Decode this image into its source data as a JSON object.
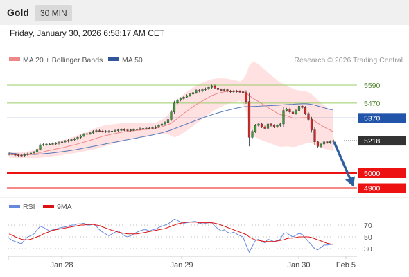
{
  "header": {
    "instrument": "Gold",
    "timeframe": "30 MIN",
    "datetime": "Friday, January 30, 2026 6:58:17 AM CET"
  },
  "legend": {
    "ma20": "MA 20 + Bollinger Bands",
    "ma50": "MA 50",
    "credit": "Research © 2026 Trading Central",
    "rsi": "RSI",
    "rsi_ma": "9MA"
  },
  "colors": {
    "candle_up": "#33a033",
    "candle_down": "#dd2222",
    "bollinger_fill": "#ffdede",
    "ma20": "#ee8888",
    "ma50": "#5577bb",
    "level_green": "#99cc66",
    "level_blue": "#2255aa",
    "level_red": "#ee1111",
    "current_tag": "#333333",
    "arrow": "#2f5f9f",
    "rsi": "#6688dd",
    "rsi_ma": "#dd1111"
  },
  "chart_data": [
    {
      "type": "candlestick",
      "y_range": [
        4860,
        5700
      ],
      "x_labels": [
        "Jan 28",
        "Jan 29",
        "Jan 30",
        "Feb 5"
      ],
      "levels": [
        {
          "value": 5590,
          "label": "5590",
          "kind": "green"
        },
        {
          "value": 5470,
          "label": "5470",
          "kind": "green"
        },
        {
          "value": 5370,
          "label": "5370",
          "kind": "blue"
        },
        {
          "value": 5218,
          "label": "5218",
          "kind": "current"
        },
        {
          "value": 5000,
          "label": "5000",
          "kind": "red"
        },
        {
          "value": 4900,
          "label": "4900",
          "kind": "red"
        }
      ],
      "closes": [
        5130,
        5125,
        5122,
        5120,
        5118,
        5125,
        5130,
        5135,
        5140,
        5160,
        5190,
        5192,
        5195,
        5195,
        5198,
        5200,
        5205,
        5210,
        5215,
        5220,
        5225,
        5230,
        5240,
        5250,
        5260,
        5265,
        5270,
        5280,
        5285,
        5282,
        5280,
        5278,
        5280,
        5282,
        5285,
        5290,
        5292,
        5290,
        5288,
        5290,
        5292,
        5295,
        5298,
        5300,
        5302,
        5300,
        5305,
        5310,
        5320,
        5330,
        5340,
        5360,
        5410,
        5470,
        5490,
        5500,
        5510,
        5520,
        5530,
        5540,
        5555,
        5550,
        5560,
        5565,
        5575,
        5585,
        5570,
        5560,
        5555,
        5560,
        5550,
        5545,
        5550,
        5548,
        5545,
        5540,
        5480,
        5240,
        5280,
        5320,
        5330,
        5310,
        5300,
        5330,
        5320,
        5310,
        5320,
        5330,
        5420,
        5430,
        5410,
        5400,
        5420,
        5450,
        5440,
        5400,
        5360,
        5290,
        5210,
        5180,
        5195,
        5210,
        5205,
        5212,
        5218
      ],
      "ma20": [
        5125,
        5124,
        5123,
        5122,
        5121,
        5122,
        5123,
        5125,
        5127,
        5132,
        5138,
        5143,
        5148,
        5153,
        5157,
        5162,
        5166,
        5170,
        5175,
        5180,
        5185,
        5190,
        5196,
        5202,
        5208,
        5214,
        5220,
        5227,
        5234,
        5240,
        5247,
        5252,
        5257,
        5261,
        5266,
        5270,
        5274,
        5277,
        5280,
        5283,
        5285,
        5287,
        5289,
        5291,
        5293,
        5295,
        5297,
        5300,
        5305,
        5311,
        5318,
        5325,
        5335,
        5350,
        5367,
        5384,
        5400,
        5415,
        5430,
        5445,
        5460,
        5472,
        5484,
        5496,
        5508,
        5520,
        5528,
        5535,
        5540,
        5545,
        5548,
        5549,
        5550,
        5550,
        5549,
        5547,
        5540,
        5520,
        5505,
        5492,
        5480,
        5467,
        5452,
        5440,
        5428,
        5415,
        5402,
        5392,
        5388,
        5384,
        5378,
        5370,
        5368,
        5370,
        5372,
        5373,
        5372,
        5365,
        5350,
        5335,
        5322,
        5310,
        5298,
        5288,
        5278
      ],
      "ma50": [
        5135,
        5133,
        5131,
        5129,
        5127,
        5126,
        5125,
        5125,
        5125,
        5126,
        5128,
        5130,
        5132,
        5134,
        5136,
        5138,
        5141,
        5144,
        5147,
        5150,
        5153,
        5156,
        5160,
        5164,
        5168,
        5172,
        5176,
        5180,
        5184,
        5188,
        5192,
        5196,
        5200,
        5204,
        5208,
        5212,
        5216,
        5220,
        5224,
        5228,
        5232,
        5236,
        5240,
        5244,
        5248,
        5252,
        5256,
        5261,
        5266,
        5271,
        5277,
        5283,
        5290,
        5298,
        5306,
        5314,
        5322,
        5330,
        5338,
        5346,
        5354,
        5362,
        5370,
        5377,
        5384,
        5391,
        5398,
        5404,
        5410,
        5416,
        5421,
        5426,
        5431,
        5436,
        5440,
        5444,
        5446,
        5446,
        5447,
        5448,
        5449,
        5450,
        5451,
        5452,
        5453,
        5454,
        5455,
        5456,
        5458,
        5460,
        5461,
        5462,
        5463,
        5464,
        5465,
        5465,
        5464,
        5461,
        5456,
        5450,
        5444,
        5438,
        5432,
        5427,
        5422
      ],
      "bb_width": [
        20,
        20,
        20,
        20,
        20,
        20,
        22,
        24,
        26,
        30,
        35,
        38,
        40,
        42,
        44,
        46,
        48,
        50,
        50,
        52,
        54,
        56,
        58,
        60,
        62,
        64,
        66,
        68,
        70,
        70,
        70,
        70,
        68,
        66,
        64,
        62,
        60,
        58,
        56,
        54,
        52,
        50,
        48,
        46,
        44,
        42,
        40,
        40,
        42,
        48,
        55,
        65,
        85,
        110,
        120,
        125,
        128,
        130,
        130,
        130,
        128,
        125,
        122,
        118,
        115,
        110,
        105,
        100,
        95,
        90,
        85,
        80,
        75,
        70,
        65,
        80,
        120,
        200,
        240,
        250,
        250,
        245,
        240,
        235,
        230,
        225,
        220,
        215,
        210,
        205,
        200,
        195,
        190,
        185,
        180,
        175,
        170,
        165,
        160,
        155,
        150,
        145,
        140,
        135,
        130
      ]
    },
    {
      "type": "line",
      "title": "RSI",
      "y_range": [
        20,
        85
      ],
      "y_ticks": [
        70,
        50,
        30
      ],
      "x_labels": [
        "Jan 28",
        "Jan 29",
        "Jan 30",
        "Feb 5"
      ],
      "series": [
        {
          "name": "RSI",
          "values": [
            48,
            44,
            42,
            40,
            38,
            45,
            50,
            52,
            55,
            62,
            68,
            66,
            63,
            60,
            62,
            63,
            65,
            66,
            67,
            68,
            70,
            70,
            72,
            72,
            73,
            70,
            70,
            72,
            68,
            62,
            58,
            55,
            52,
            55,
            58,
            60,
            56,
            52,
            50,
            52,
            55,
            58,
            60,
            62,
            62,
            60,
            62,
            63,
            66,
            68,
            70,
            72,
            76,
            80,
            78,
            75,
            73,
            74,
            75,
            76,
            76,
            72,
            74,
            73,
            74,
            74,
            68,
            64,
            60,
            62,
            58,
            56,
            58,
            55,
            52,
            50,
            36,
            24,
            34,
            44,
            46,
            42,
            40,
            46,
            44,
            42,
            44,
            46,
            56,
            57,
            53,
            50,
            53,
            56,
            54,
            48,
            42,
            36,
            30,
            28,
            32,
            36,
            36,
            37,
            38
          ]
        },
        {
          "name": "9MA",
          "values": [
            55,
            53,
            50,
            48,
            46,
            45,
            45,
            46,
            48,
            50,
            52,
            55,
            57,
            59,
            61,
            62,
            63,
            64,
            65,
            66,
            67,
            68,
            69,
            70,
            70,
            71,
            71,
            71,
            70,
            69,
            67,
            65,
            63,
            61,
            60,
            58,
            57,
            56,
            55,
            55,
            55,
            55,
            56,
            57,
            58,
            59,
            60,
            61,
            62,
            63,
            64,
            66,
            68,
            70,
            72,
            73,
            74,
            75,
            75,
            75,
            75,
            74,
            74,
            74,
            74,
            74,
            73,
            72,
            70,
            68,
            66,
            64,
            62,
            60,
            58,
            56,
            54,
            50,
            47,
            45,
            44,
            43,
            42,
            42,
            42,
            42,
            43,
            44,
            45,
            47,
            48,
            48,
            49,
            50,
            50,
            50,
            50,
            49,
            47,
            45,
            43,
            41,
            39,
            38,
            37
          ]
        }
      ]
    }
  ]
}
